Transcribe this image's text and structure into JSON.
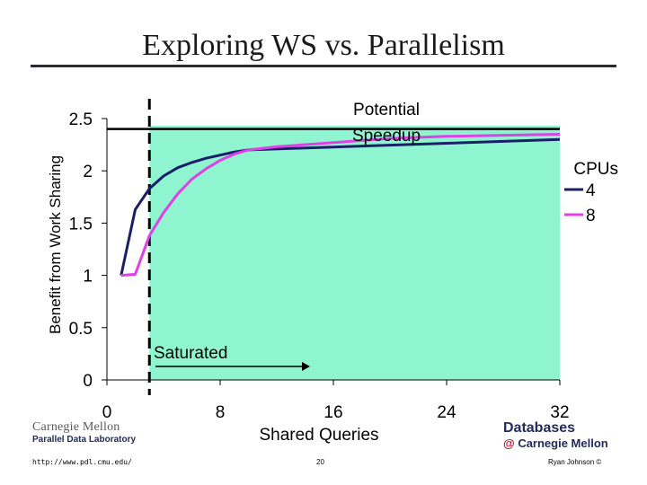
{
  "slide": {
    "title": "Exploring WS vs. Parallelism"
  },
  "chart_data": {
    "type": "line",
    "xlabel": "Shared Queries",
    "ylabel": "Benefit from Work Sharing",
    "xlim": [
      0,
      32
    ],
    "ylim": [
      0,
      2.5
    ],
    "x_ticks": [
      "0",
      "8",
      "16",
      "24",
      "32"
    ],
    "y_ticks": [
      "0",
      "0.5",
      "1",
      "1.5",
      "2",
      "2.5"
    ],
    "legend_title": "CPUs",
    "legend_position": "right",
    "series": [
      {
        "name": "4",
        "color": "#1a1f66",
        "x": [
          1,
          2,
          3,
          4,
          5,
          6,
          7,
          8,
          9,
          10,
          32
        ],
        "y": [
          1.0,
          1.63,
          1.83,
          1.95,
          2.03,
          2.08,
          2.12,
          2.15,
          2.18,
          2.2,
          2.3
        ]
      },
      {
        "name": "8",
        "color": "#e040e8",
        "x": [
          1,
          2,
          3,
          4,
          5,
          6,
          7,
          8,
          9,
          10,
          12,
          16,
          20,
          24,
          28,
          32
        ],
        "y": [
          1.0,
          1.01,
          1.38,
          1.6,
          1.78,
          1.92,
          2.02,
          2.1,
          2.16,
          2.2,
          2.23,
          2.27,
          2.31,
          2.33,
          2.34,
          2.35
        ]
      }
    ],
    "potential_speedup": 2.4,
    "saturation_x": 3,
    "fill_color": "#8ef5d0",
    "annotations": {
      "potential_speedup": "Potential Speedup",
      "saturated": "Saturated"
    }
  },
  "footer": {
    "cmu_line1": "Carnegie Mellon",
    "cmu_line2": "Parallel Data Laboratory",
    "db_line1": "Databases",
    "db_at": "@",
    "db_line2": "Carnegie Mellon",
    "url": "http://www.pdl.cmu.edu/",
    "page": "20",
    "author": "Ryan Johnson ©"
  }
}
